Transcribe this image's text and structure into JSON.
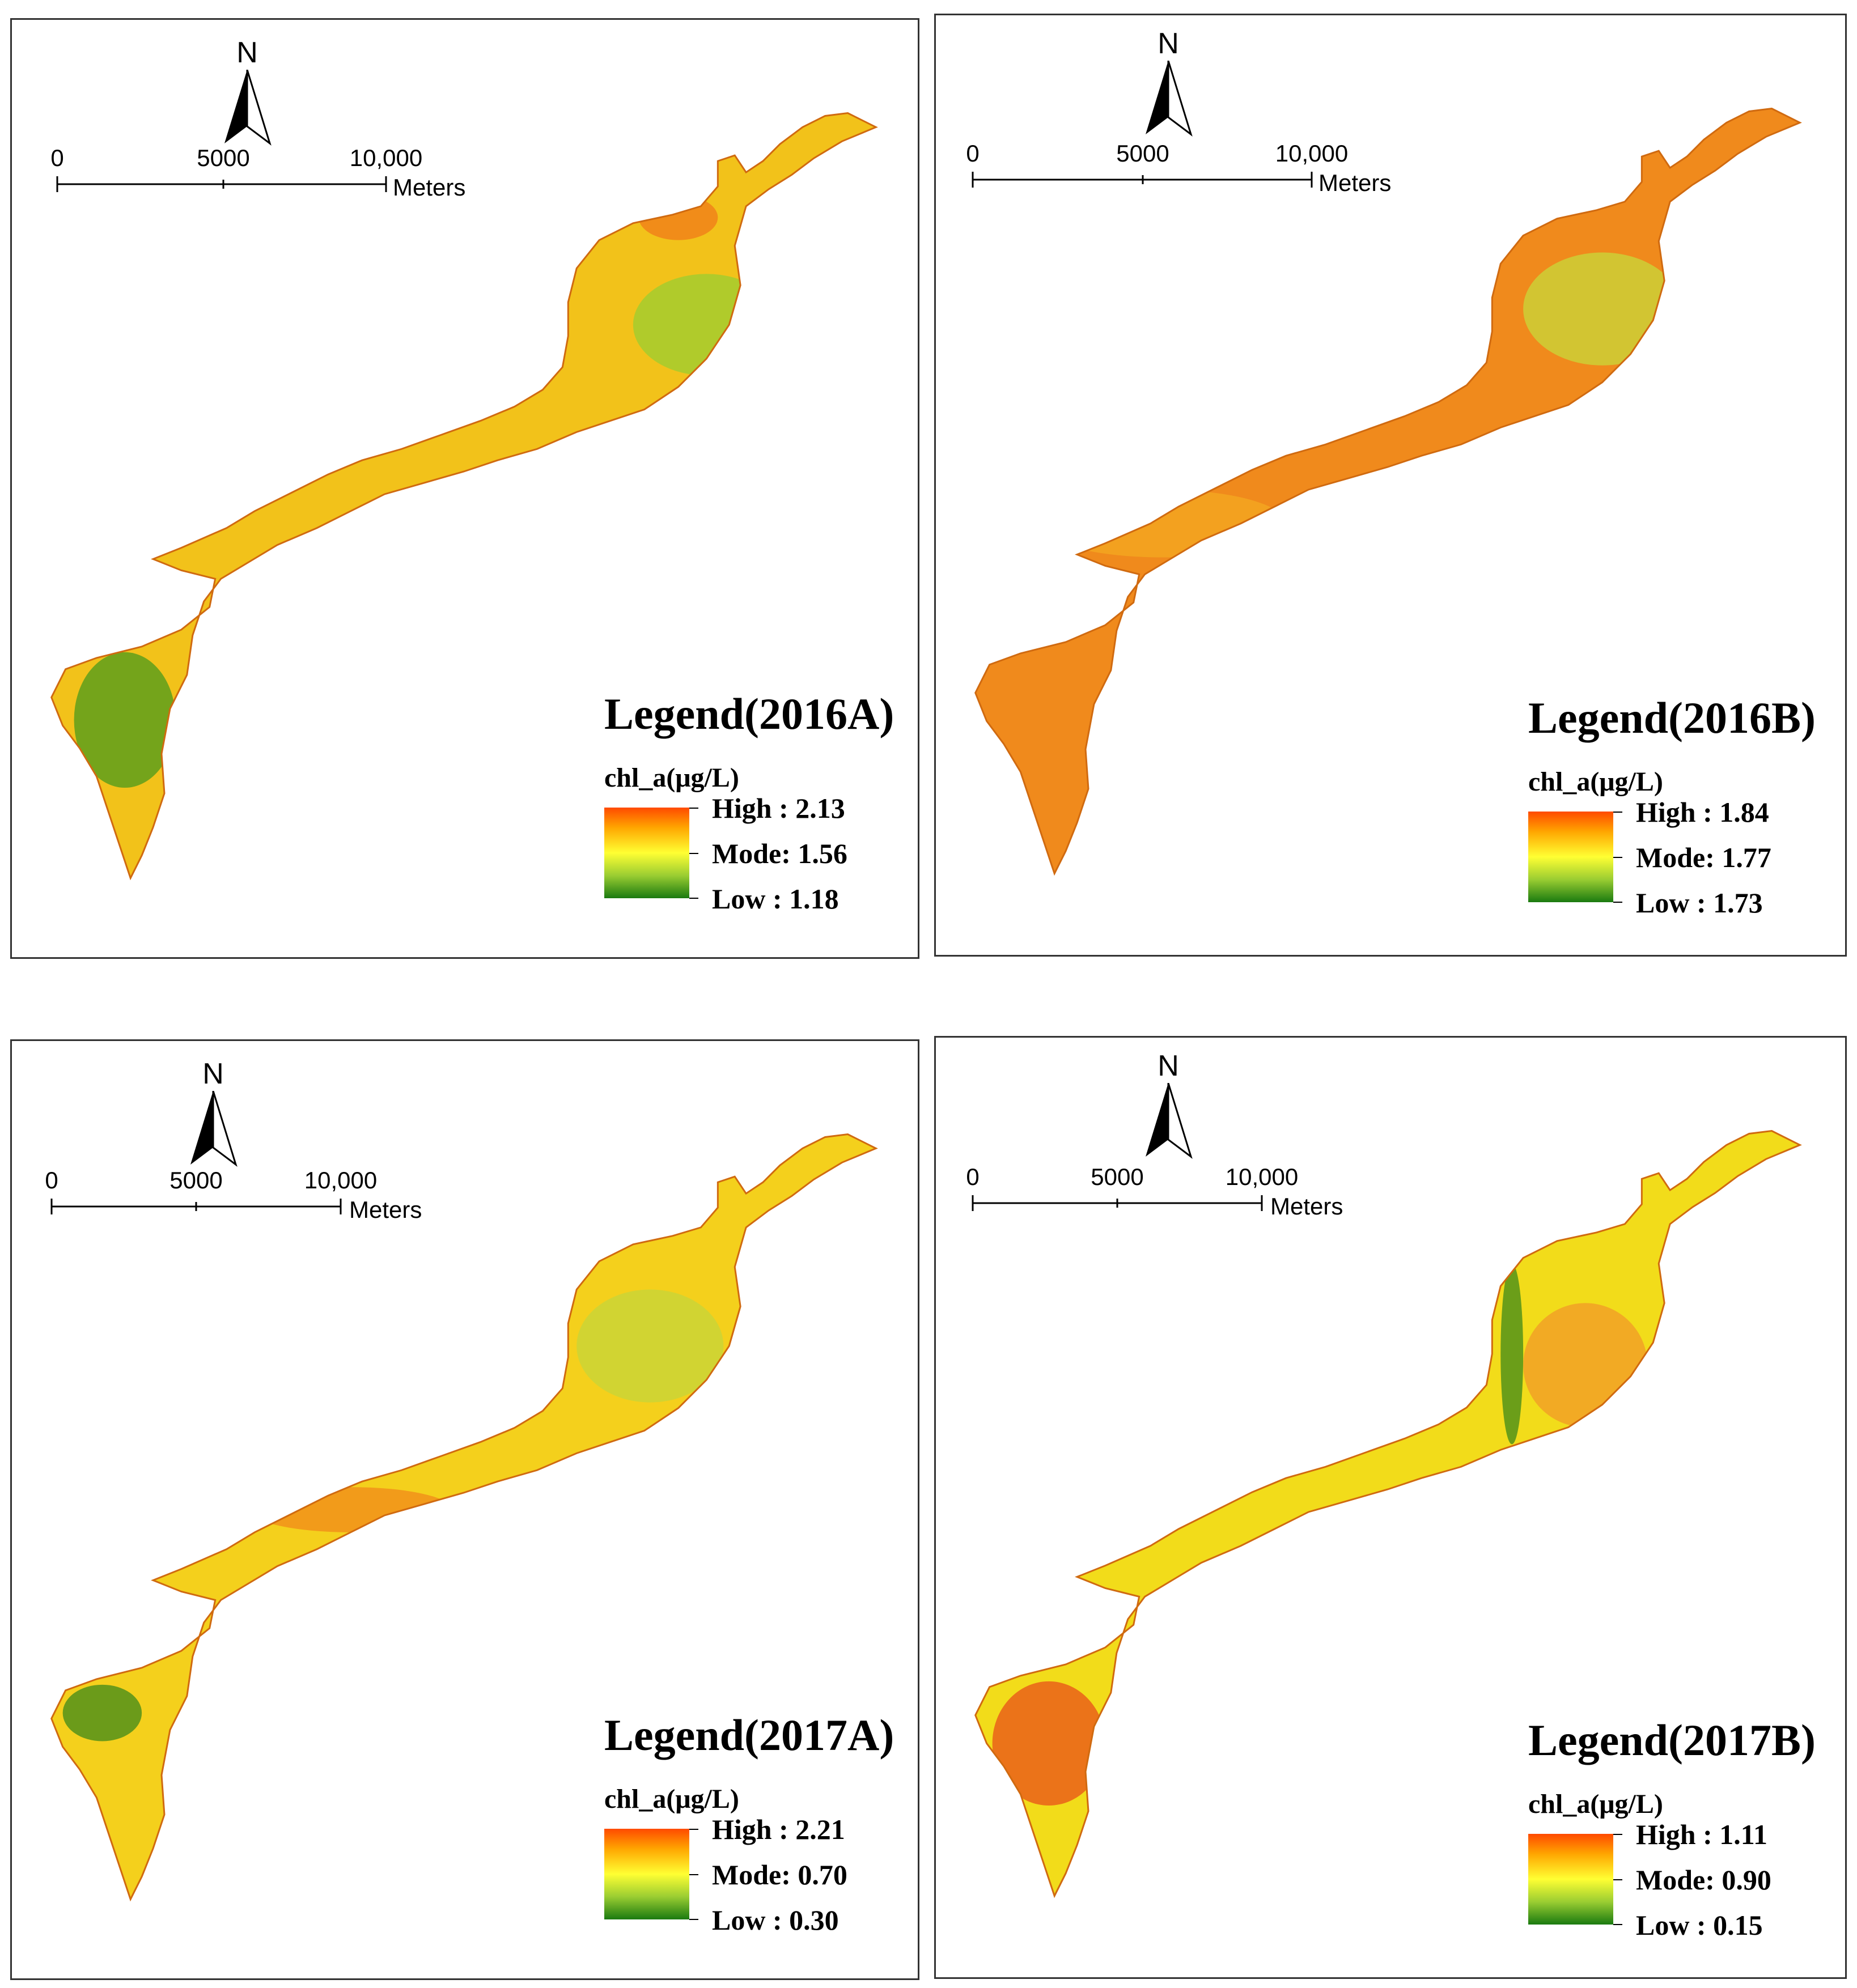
{
  "panels": [
    {
      "legend_title": "Legend(2016A)",
      "field_label": "chl_a(μg/L)",
      "high": "High : 2.13",
      "mode": "Mode: 1.56",
      "low": "Low : 1.18",
      "north_label": "N",
      "scale_labels": [
        "0",
        "5000",
        "10,000"
      ],
      "scale_units": "Meters",
      "dominant_color": "#f2c21a"
    },
    {
      "legend_title": "Legend(2016B)",
      "field_label": "chl_a(μg/L)",
      "high": "High : 1.84",
      "mode": "Mode: 1.77",
      "low": "Low : 1.73",
      "north_label": "N",
      "scale_labels": [
        "0",
        "5000",
        "10,000"
      ],
      "scale_units": "Meters",
      "dominant_color": "#f08a1c"
    },
    {
      "legend_title": "Legend(2017A)",
      "field_label": "chl_a(μg/L)",
      "high": "High : 2.21",
      "mode": "Mode: 0.70",
      "low": "Low : 0.30",
      "north_label": "N",
      "scale_labels": [
        "0",
        "5000",
        "10,000"
      ],
      "scale_units": "Meters",
      "dominant_color": "#f4d01c"
    },
    {
      "legend_title": "Legend(2017B)",
      "field_label": "chl_a(μg/L)",
      "high": "High : 1.11",
      "mode": "Mode: 0.90",
      "low": "Low : 0.15",
      "north_label": "N",
      "scale_labels": [
        "0",
        "5000",
        "10,000"
      ],
      "scale_units": "Meters",
      "dominant_color": "#f2dc1a"
    }
  ],
  "colors": {
    "ramp_high": "#ff4a00",
    "ramp_mode": "#ffff33",
    "ramp_low": "#1a7a10"
  }
}
